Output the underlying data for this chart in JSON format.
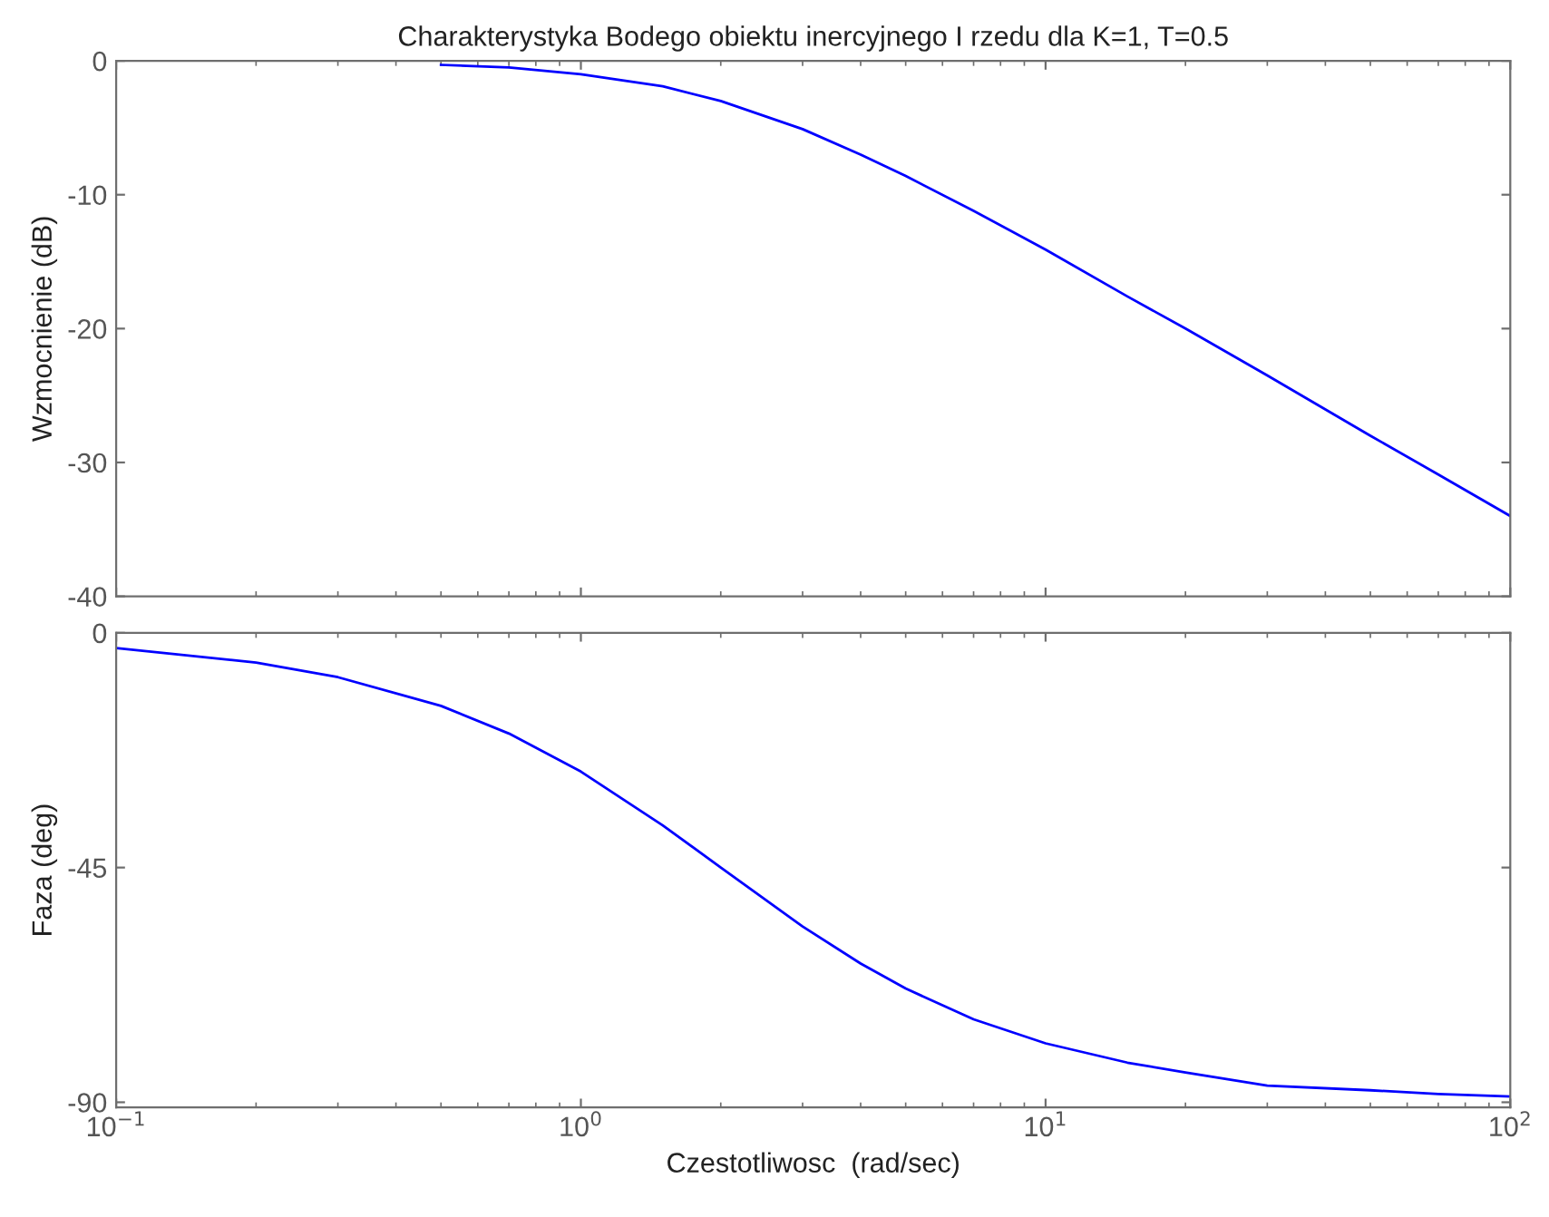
{
  "chart_data": [
    {
      "type": "line",
      "title": "Charakterystyka Bodego obiektu inercyjnego I rzedu dla K=1, T=0.5",
      "ylabel": "Wzmocnienie (dB)",
      "log": "x",
      "grid": false,
      "tick_labels": "y",
      "xlim": [
        0.1,
        100
      ],
      "xticks": [
        {
          "value": 0.1,
          "label": null
        },
        {
          "value": 1,
          "label": null
        },
        {
          "value": 10,
          "label": null
        },
        {
          "value": 100,
          "label": null
        }
      ],
      "ylim": [
        -40,
        0
      ],
      "yticks": [
        -40,
        -30,
        -20,
        -10,
        0
      ],
      "x": [
        0.5,
        0.7,
        1,
        1.5,
        2,
        3,
        4,
        5,
        7,
        10,
        15,
        20,
        30,
        50,
        70,
        100
      ],
      "series": [
        {
          "color": "#0000ff",
          "values": [
            -0.3,
            -0.5,
            -1.0,
            -1.9,
            -3.0,
            -5.1,
            -7.0,
            -8.6,
            -11.2,
            -14.1,
            -17.6,
            -20.0,
            -23.5,
            -28.0,
            -30.9,
            -34.0
          ]
        }
      ]
    },
    {
      "type": "line",
      "xlabel": "Czestotliwosc  (rad/sec)",
      "ylabel": "Faza (deg)",
      "log": "x",
      "grid": false,
      "xlim": [
        0.1,
        100
      ],
      "xticks": [
        {
          "value": 0.1,
          "label": "10$^{−1}$"
        },
        {
          "value": 1,
          "label": "10$^{0}$"
        },
        {
          "value": 10,
          "label": "10$^{1}$"
        },
        {
          "value": 100,
          "label": "10$^{2}$"
        }
      ],
      "ylim": [
        -91,
        0
      ],
      "yticks": [
        -90,
        -45,
        0
      ],
      "x": [
        0.1,
        0.2,
        0.3,
        0.5,
        0.7,
        1,
        1.5,
        2,
        3,
        4,
        5,
        7,
        10,
        15,
        20,
        30,
        50,
        70,
        100
      ],
      "series": [
        {
          "color": "#0000ff",
          "values": [
            -2.9,
            -5.7,
            -8.5,
            -14.0,
            -19.3,
            -26.6,
            -36.9,
            -45.0,
            -56.3,
            -63.4,
            -68.2,
            -74.1,
            -78.7,
            -82.4,
            -84.3,
            -86.8,
            -87.7,
            -88.4,
            -88.9
          ]
        }
      ]
    }
  ]
}
